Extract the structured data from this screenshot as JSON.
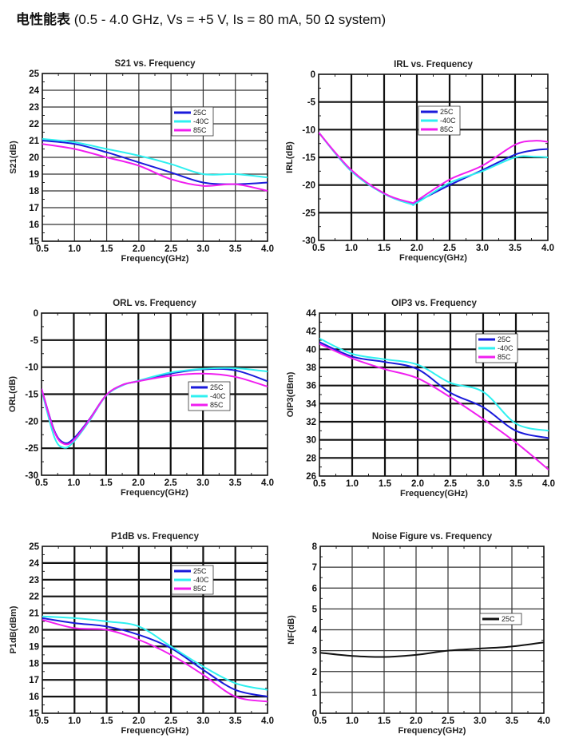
{
  "header": {
    "title_cn": "电性能表",
    "subtitle": "(0.5 - 4.0 GHz, Vs = +5 V,  Is = 80 mA,  50 Ω system)"
  },
  "colors": {
    "25C": "#1a1adb",
    "-40C": "#2ff0f0",
    "85C": "#f01ef0",
    "NF": "#111111"
  },
  "chart_data": [
    {
      "id": "s21",
      "type": "line",
      "title": "S21 vs. Frequency",
      "xlabel": "Frequency(GHz)",
      "ylabel": "S21(dB)",
      "xlim": [
        0.5,
        4.0
      ],
      "ylim": [
        15,
        25
      ],
      "xticks": [
        "0.5",
        "1.0",
        "1.5",
        "2.0",
        "2.5",
        "3.0",
        "3.5",
        "4.0"
      ],
      "yticks": [
        "15",
        "16",
        "17",
        "18",
        "19",
        "20",
        "21",
        "22",
        "23",
        "24",
        "25"
      ],
      "grid": true,
      "legend": "upper-right",
      "x": [
        0.5,
        1.0,
        1.5,
        2.0,
        2.5,
        3.0,
        3.5,
        4.0
      ],
      "series": [
        {
          "name": "25C",
          "color_key": "25C",
          "values": [
            21.0,
            20.8,
            20.3,
            19.7,
            19.1,
            18.5,
            18.4,
            18.5
          ]
        },
        {
          "name": "-40C",
          "color_key": "-40C",
          "values": [
            21.1,
            20.9,
            20.5,
            20.1,
            19.6,
            19.0,
            19.0,
            18.8
          ]
        },
        {
          "name": "85C",
          "color_key": "85C",
          "values": [
            20.8,
            20.5,
            20.0,
            19.5,
            18.7,
            18.3,
            18.4,
            18.0
          ]
        }
      ]
    },
    {
      "id": "irl",
      "type": "line",
      "title": "IRL vs. Frequency",
      "xlabel": "Frequency(GHz)",
      "ylabel": "IRL(dB)",
      "xlim": [
        0.5,
        4.0
      ],
      "ylim": [
        -30,
        0
      ],
      "xticks": [
        "0.5",
        "1.0",
        "1.5",
        "2.0",
        "2.5",
        "3.0",
        "3.5",
        "4.0"
      ],
      "yticks": [
        "-30",
        "-25",
        "-20",
        "-15",
        "-10",
        "-5",
        "0"
      ],
      "grid": true,
      "legend": "upper-center",
      "x": [
        0.5,
        1.0,
        1.5,
        1.9,
        2.0,
        2.5,
        3.0,
        3.5,
        3.8,
        4.0
      ],
      "series": [
        {
          "name": "25C",
          "color_key": "25C",
          "values": [
            -10.5,
            -17.5,
            -21.5,
            -23.3,
            -23.0,
            -20.0,
            -17.3,
            -14.5,
            -13.7,
            -13.5
          ]
        },
        {
          "name": "-40C",
          "color_key": "-40C",
          "values": [
            -10.5,
            -17.5,
            -21.6,
            -23.4,
            -23.2,
            -19.6,
            -17.5,
            -15.0,
            -14.9,
            -15.0
          ]
        },
        {
          "name": "85C",
          "color_key": "85C",
          "values": [
            -10.5,
            -17.3,
            -21.5,
            -23.1,
            -22.8,
            -19.0,
            -16.5,
            -12.7,
            -12.0,
            -12.2
          ]
        }
      ]
    },
    {
      "id": "orl",
      "type": "line",
      "title": "ORL vs. Frequency",
      "xlabel": "Frequency(GHz)",
      "ylabel": "ORL(dB)",
      "xlim": [
        0.5,
        4.0
      ],
      "ylim": [
        -30,
        0
      ],
      "xticks": [
        "0.5",
        "1.0",
        "1.5",
        "2.0",
        "2.5",
        "3.0",
        "3.5",
        "4.0"
      ],
      "yticks": [
        "-30",
        "-25",
        "-20",
        "-15",
        "-10",
        "-5",
        "0"
      ],
      "grid": true,
      "legend": "center-right",
      "x": [
        0.5,
        0.7,
        0.85,
        1.0,
        1.25,
        1.5,
        1.75,
        2.0,
        2.5,
        3.0,
        3.5,
        4.0
      ],
      "series": [
        {
          "name": "25C",
          "color_key": "25C",
          "values": [
            -14.0,
            -21.8,
            -24.0,
            -23.2,
            -19.5,
            -15.2,
            -13.3,
            -12.6,
            -11.2,
            -10.4,
            -10.6,
            -12.6
          ]
        },
        {
          "name": "-40C",
          "color_key": "-40C",
          "values": [
            -14.2,
            -23.0,
            -24.9,
            -23.8,
            -19.8,
            -15.3,
            -13.4,
            -12.5,
            -11.0,
            -10.3,
            -10.2,
            -10.8
          ]
        },
        {
          "name": "85C",
          "color_key": "85C",
          "values": [
            -14.0,
            -22.0,
            -24.2,
            -23.5,
            -19.6,
            -15.2,
            -13.3,
            -12.6,
            -11.6,
            -11.2,
            -11.8,
            -13.6
          ]
        }
      ]
    },
    {
      "id": "oip3",
      "type": "line",
      "title": "OIP3 vs. Frequency",
      "xlabel": "Frequency(GHz)",
      "ylabel": "OIP3(dBm)",
      "xlim": [
        0.5,
        4.0
      ],
      "ylim": [
        26,
        44
      ],
      "xticks": [
        "0.5",
        "1.0",
        "1.5",
        "2.0",
        "2.5",
        "3.0",
        "3.5",
        "4.0"
      ],
      "yticks": [
        "26",
        "28",
        "30",
        "32",
        "34",
        "36",
        "38",
        "40",
        "42",
        "44"
      ],
      "grid": true,
      "legend": "upper-right",
      "x": [
        0.5,
        1.0,
        1.5,
        2.0,
        2.5,
        3.0,
        3.5,
        4.0
      ],
      "series": [
        {
          "name": "25C",
          "color_key": "25C",
          "values": [
            40.8,
            39.2,
            38.6,
            37.8,
            35.2,
            33.6,
            31.0,
            30.2
          ]
        },
        {
          "name": "-40C",
          "color_key": "-40C",
          "values": [
            41.2,
            39.5,
            38.9,
            38.3,
            36.3,
            35.3,
            31.8,
            31.0
          ]
        },
        {
          "name": "85C",
          "color_key": "85C",
          "values": [
            40.6,
            39.0,
            37.8,
            36.8,
            34.7,
            32.3,
            29.7,
            26.7
          ]
        }
      ]
    },
    {
      "id": "p1db",
      "type": "line",
      "title": "P1dB vs. Frequency",
      "xlabel": "Frequency(GHz)",
      "ylabel": "P1dB(dBm)",
      "xlim": [
        0.5,
        4.0
      ],
      "ylim": [
        15,
        25
      ],
      "xticks": [
        "0.5",
        "1.0",
        "1.5",
        "2.0",
        "2.5",
        "3.0",
        "3.5",
        "4.0"
      ],
      "yticks": [
        "15",
        "16",
        "17",
        "18",
        "19",
        "20",
        "21",
        "22",
        "23",
        "24",
        "25"
      ],
      "grid": true,
      "legend": "upper-right",
      "x": [
        0.5,
        1.0,
        1.5,
        2.0,
        2.5,
        3.0,
        3.5,
        4.0
      ],
      "series": [
        {
          "name": "25C",
          "color_key": "25C",
          "values": [
            20.7,
            20.4,
            20.2,
            19.7,
            18.9,
            17.6,
            16.4,
            16.0
          ]
        },
        {
          "name": "-40C",
          "color_key": "-40C",
          "values": [
            20.8,
            20.7,
            20.5,
            20.2,
            19.0,
            17.8,
            16.8,
            16.4
          ]
        },
        {
          "name": "85C",
          "color_key": "85C",
          "values": [
            20.6,
            20.1,
            20.0,
            19.4,
            18.5,
            17.3,
            16.0,
            15.7
          ]
        }
      ]
    },
    {
      "id": "nf",
      "type": "line",
      "title": "Noise Figure vs. Frequency",
      "xlabel": "Frequency(GHz)",
      "ylabel": "NF(dB)",
      "xlim": [
        0.5,
        4.0
      ],
      "ylim": [
        0,
        8
      ],
      "xticks": [
        "0.5",
        "1.0",
        "1.5",
        "2.0",
        "2.5",
        "3.0",
        "3.5",
        "4.0"
      ],
      "yticks": [
        "0",
        "1",
        "2",
        "3",
        "4",
        "5",
        "6",
        "7",
        "8"
      ],
      "grid": true,
      "legend": "center-right",
      "x": [
        0.5,
        1.0,
        1.5,
        2.0,
        2.5,
        3.0,
        3.5,
        4.0
      ],
      "series": [
        {
          "name": "25C",
          "color_key": "NF",
          "values": [
            2.9,
            2.75,
            2.7,
            2.8,
            3.0,
            3.1,
            3.2,
            3.4
          ]
        }
      ]
    }
  ]
}
